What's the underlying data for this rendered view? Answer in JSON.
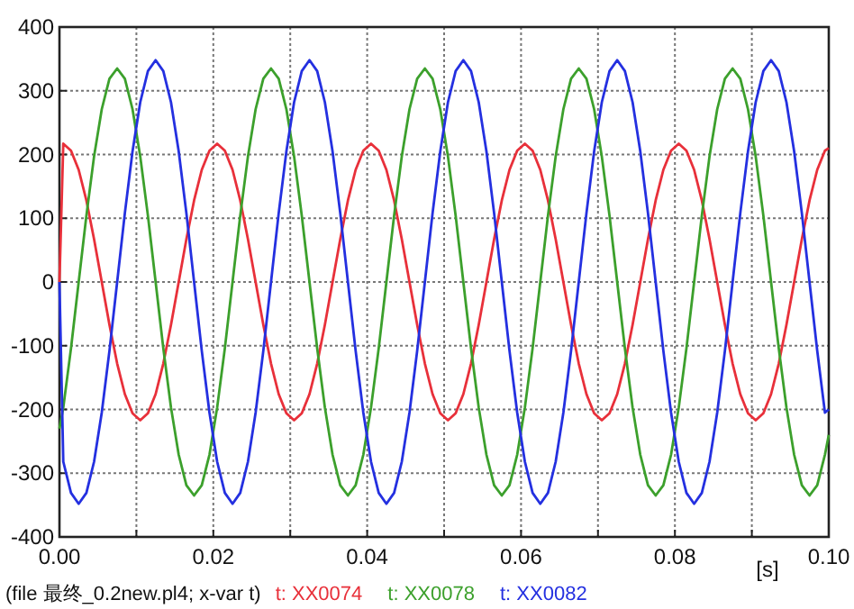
{
  "chart_data": {
    "type": "line",
    "xlabel": "[s]",
    "annotations": [
      "(file 最终_0.2new.pl4; x-var t)"
    ],
    "xlim": [
      0,
      0.1
    ],
    "ylim": [
      -400,
      400
    ],
    "xticks": [
      {
        "value": 0,
        "label": "0.00"
      },
      {
        "value": 0.01,
        "label": null
      },
      {
        "value": 0.02,
        "label": "0.02"
      },
      {
        "value": 0.03,
        "label": null
      },
      {
        "value": 0.04,
        "label": "0.04"
      },
      {
        "value": 0.05,
        "label": null
      },
      {
        "value": 0.06,
        "label": "0.06"
      },
      {
        "value": 0.07,
        "label": null
      },
      {
        "value": 0.08,
        "label": "0.08"
      },
      {
        "value": 0.09,
        "label": null
      },
      {
        "value": 0.1,
        "label": "0.10"
      }
    ],
    "yticks": [
      -400,
      -300,
      -200,
      -100,
      0,
      100,
      200,
      300,
      400
    ],
    "grid": true,
    "legend": "bottom",
    "x": [
      0,
      0.0005,
      0.0015,
      0.0025,
      0.0035,
      0.0045,
      0.0055,
      0.0065,
      0.0075,
      0.0085,
      0.0095,
      0.0105,
      0.0115,
      0.0125,
      0.0135,
      0.0145,
      0.0155,
      0.0165,
      0.0175,
      0.0185,
      0.0195,
      0.0205,
      0.0215,
      0.0225,
      0.0235,
      0.0245,
      0.0255,
      0.0265,
      0.0275,
      0.0285,
      0.0295,
      0.0305,
      0.0315,
      0.0325,
      0.0335,
      0.0345,
      0.0355,
      0.0365,
      0.0375,
      0.0385,
      0.0395,
      0.0405,
      0.0415,
      0.0425,
      0.0435,
      0.0445,
      0.0455,
      0.0465,
      0.0475,
      0.0485,
      0.0495,
      0.0505,
      0.0515,
      0.0525,
      0.0535,
      0.0545,
      0.0555,
      0.0565,
      0.0575,
      0.0585,
      0.0595,
      0.0605,
      0.0615,
      0.0625,
      0.0635,
      0.0645,
      0.0655,
      0.0665,
      0.0675,
      0.0685,
      0.0695,
      0.0705,
      0.0715,
      0.0725,
      0.0735,
      0.0745,
      0.0755,
      0.0765,
      0.0775,
      0.0785,
      0.0795,
      0.0805,
      0.0815,
      0.0825,
      0.0835,
      0.0845,
      0.0855,
      0.0865,
      0.0875,
      0.0885,
      0.0895,
      0.0905,
      0.0915,
      0.0925,
      0.0935,
      0.0945,
      0.0955,
      0.0965,
      0.0975,
      0.0985,
      0.0995,
      0.1
    ],
    "series": [
      {
        "name": "t: XX0074",
        "color": "#e8303a",
        "values": [
          0,
          217,
          206,
          176,
          128,
          67,
          0,
          -67,
          -128,
          -176,
          -206,
          -217,
          -206,
          -176,
          -128,
          -67,
          0,
          67,
          128,
          176,
          206,
          217,
          206,
          176,
          128,
          67,
          0,
          -67,
          -128,
          -176,
          -206,
          -217,
          -206,
          -176,
          -128,
          -67,
          0,
          67,
          128,
          176,
          206,
          217,
          206,
          176,
          128,
          67,
          0,
          -67,
          -128,
          -176,
          -206,
          -217,
          -206,
          -176,
          -128,
          -67,
          0,
          67,
          128,
          176,
          206,
          217,
          206,
          176,
          128,
          67,
          0,
          -67,
          -128,
          -176,
          -206,
          -217,
          -206,
          -176,
          -128,
          -67,
          0,
          67,
          128,
          176,
          206,
          217,
          206,
          176,
          128,
          67,
          0,
          -67,
          -128,
          -176,
          -206,
          -217,
          -206,
          -176,
          -128,
          -67,
          0,
          67,
          128,
          176,
          206,
          210
        ]
      },
      {
        "name": "t: XX0078",
        "color": "#3ca02c",
        "values": [
          -230,
          -197,
          -104,
          0,
          104,
          197,
          271,
          319,
          335,
          319,
          271,
          197,
          104,
          0,
          -104,
          -197,
          -271,
          -319,
          -335,
          -319,
          -271,
          -197,
          -104,
          0,
          104,
          197,
          271,
          319,
          335,
          319,
          271,
          197,
          104,
          0,
          -104,
          -197,
          -271,
          -319,
          -335,
          -319,
          -271,
          -197,
          -104,
          0,
          104,
          197,
          271,
          319,
          335,
          319,
          271,
          197,
          104,
          0,
          -104,
          -197,
          -271,
          -319,
          -335,
          -319,
          -271,
          -197,
          -104,
          0,
          104,
          197,
          271,
          319,
          335,
          319,
          271,
          197,
          104,
          0,
          -104,
          -197,
          -271,
          -319,
          -335,
          -319,
          -271,
          -197,
          -104,
          0,
          104,
          197,
          271,
          319,
          335,
          319,
          271,
          197,
          104,
          0,
          -104,
          -197,
          -271,
          -319,
          -335,
          -319,
          -271,
          -240
        ]
      },
      {
        "name": "t: XX0082",
        "color": "#2430e0",
        "values": [
          0,
          -282,
          -331,
          -348,
          -331,
          -282,
          -205,
          -108,
          0,
          108,
          205,
          282,
          331,
          348,
          331,
          282,
          205,
          108,
          0,
          -108,
          -205,
          -282,
          -331,
          -348,
          -331,
          -282,
          -205,
          -108,
          0,
          108,
          205,
          282,
          331,
          348,
          331,
          282,
          205,
          108,
          0,
          -108,
          -205,
          -282,
          -331,
          -348,
          -331,
          -282,
          -205,
          -108,
          0,
          108,
          205,
          282,
          331,
          348,
          331,
          282,
          205,
          108,
          0,
          -108,
          -205,
          -282,
          -331,
          -348,
          -331,
          -282,
          -205,
          -108,
          0,
          108,
          205,
          282,
          331,
          348,
          331,
          282,
          205,
          108,
          0,
          -108,
          -205,
          -282,
          -331,
          -348,
          -331,
          -282,
          -205,
          -108,
          0,
          108,
          205,
          282,
          331,
          348,
          331,
          282,
          205,
          108,
          0,
          -108,
          -205,
          -200
        ]
      }
    ]
  }
}
